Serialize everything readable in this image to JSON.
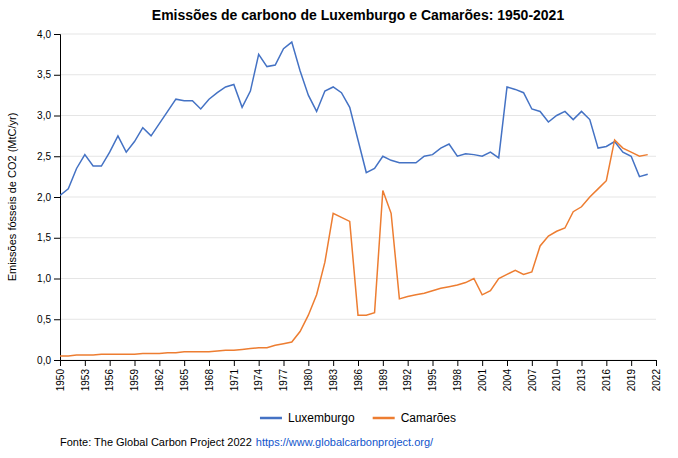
{
  "chart_data": {
    "type": "line",
    "title": "Emissões de carbono de Luxemburgo e Camarões: 1950-2021",
    "y_label": "Emissões fósseis de CO2 (MtC/yr)",
    "annotations": [
      "Fonte: The Global Carbon Project 2022",
      "https://www.globalcarbonproject.org/"
    ],
    "x": [
      1950,
      1951,
      1952,
      1953,
      1954,
      1955,
      1956,
      1957,
      1958,
      1959,
      1960,
      1961,
      1962,
      1963,
      1964,
      1965,
      1966,
      1967,
      1968,
      1969,
      1970,
      1971,
      1972,
      1973,
      1974,
      1975,
      1976,
      1977,
      1978,
      1979,
      1980,
      1981,
      1982,
      1983,
      1984,
      1985,
      1986,
      1987,
      1988,
      1989,
      1990,
      1991,
      1992,
      1993,
      1994,
      1995,
      1996,
      1997,
      1998,
      1999,
      2000,
      2001,
      2002,
      2003,
      2004,
      2005,
      2006,
      2007,
      2008,
      2009,
      2010,
      2011,
      2012,
      2013,
      2014,
      2015,
      2016,
      2017,
      2018,
      2019,
      2020,
      2021
    ],
    "series": [
      {
        "name": "Luxemburgo",
        "color": "#4472C4",
        "values": [
          2.02,
          2.1,
          2.35,
          2.52,
          2.38,
          2.38,
          2.55,
          2.75,
          2.55,
          2.68,
          2.85,
          2.75,
          2.9,
          3.05,
          3.2,
          3.18,
          3.18,
          3.08,
          3.2,
          3.28,
          3.35,
          3.38,
          3.1,
          3.3,
          3.75,
          3.6,
          3.62,
          3.82,
          3.9,
          3.55,
          3.25,
          3.05,
          3.3,
          3.35,
          3.28,
          3.1,
          2.7,
          2.3,
          2.35,
          2.5,
          2.45,
          2.42,
          2.42,
          2.42,
          2.5,
          2.52,
          2.6,
          2.65,
          2.5,
          2.53,
          2.52,
          2.5,
          2.55,
          2.48,
          3.35,
          3.32,
          3.28,
          3.08,
          3.05,
          2.92,
          3.0,
          3.05,
          2.95,
          3.05,
          2.95,
          2.6,
          2.62,
          2.68,
          2.55,
          2.5,
          2.25,
          2.28
        ]
      },
      {
        "name": "Camarões",
        "color": "#ED7D31",
        "values": [
          0.05,
          0.05,
          0.06,
          0.06,
          0.06,
          0.07,
          0.07,
          0.07,
          0.07,
          0.07,
          0.08,
          0.08,
          0.08,
          0.09,
          0.09,
          0.1,
          0.1,
          0.1,
          0.1,
          0.11,
          0.12,
          0.12,
          0.13,
          0.14,
          0.15,
          0.15,
          0.18,
          0.2,
          0.22,
          0.35,
          0.55,
          0.8,
          1.2,
          1.8,
          1.75,
          1.7,
          0.55,
          0.55,
          0.58,
          2.08,
          1.8,
          0.75,
          0.78,
          0.8,
          0.82,
          0.85,
          0.88,
          0.9,
          0.92,
          0.95,
          1.0,
          0.8,
          0.85,
          1.0,
          1.05,
          1.1,
          1.05,
          1.08,
          1.4,
          1.52,
          1.58,
          1.62,
          1.82,
          1.88,
          2.0,
          2.1,
          2.2,
          2.7,
          2.6,
          2.55,
          2.5,
          2.52
        ]
      }
    ],
    "xlim": [
      1950,
      2022
    ],
    "xticks": [
      1950,
      1953,
      1956,
      1959,
      1962,
      1965,
      1968,
      1971,
      1974,
      1977,
      1980,
      1983,
      1986,
      1989,
      1992,
      1995,
      1998,
      2001,
      2004,
      2007,
      2010,
      2013,
      2016,
      2019,
      2022
    ],
    "ylim": [
      0.0,
      4.0
    ],
    "yticks": [
      {
        "value": 0.0,
        "label": "0,0"
      },
      {
        "value": 0.5,
        "label": "0,5"
      },
      {
        "value": 1.0,
        "label": "1,0"
      },
      {
        "value": 1.5,
        "label": "1,5"
      },
      {
        "value": 2.0,
        "label": "2,0"
      },
      {
        "value": 2.5,
        "label": "2,5"
      },
      {
        "value": 3.0,
        "label": "3,0"
      },
      {
        "value": 3.5,
        "label": "3,5"
      },
      {
        "value": 4.0,
        "label": "4,0"
      }
    ],
    "grid": true,
    "legend": "bottom"
  }
}
